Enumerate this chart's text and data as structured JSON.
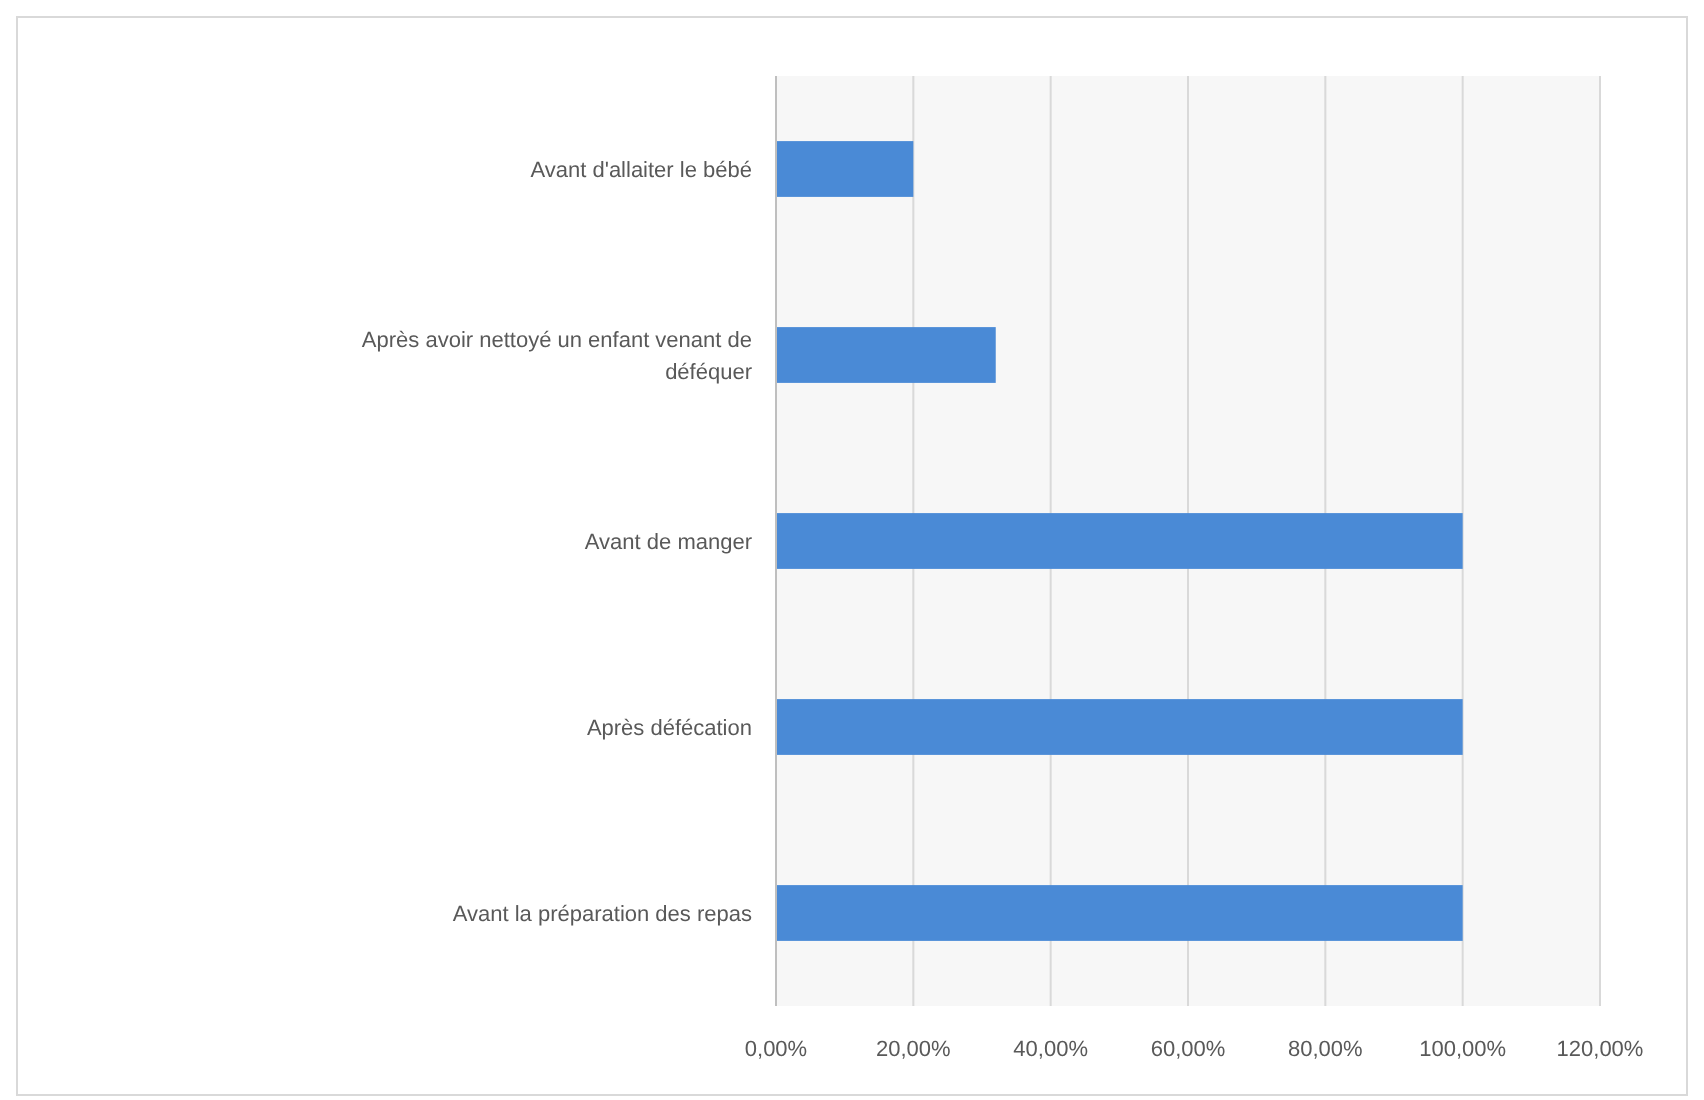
{
  "chart_data": {
    "type": "bar",
    "orientation": "horizontal",
    "categories": [
      "Avant d'allaiter le bébé",
      "Après avoir nettoyé un enfant venant de déféquer",
      "Avant de manger",
      "Après défécation",
      "Avant la préparation des repas"
    ],
    "values": [
      20,
      32,
      100,
      100,
      100
    ],
    "color": "#4a8ad6",
    "xlim": [
      0,
      120
    ],
    "xticks": [
      {
        "value": 0,
        "label": "0,00%"
      },
      {
        "value": 20,
        "label": "20,00%"
      },
      {
        "value": 40,
        "label": "40,00%"
      },
      {
        "value": 60,
        "label": "60,00%"
      },
      {
        "value": 80,
        "label": "80,00%"
      },
      {
        "value": 100,
        "label": "100,00%"
      },
      {
        "value": 120,
        "label": "120,00%"
      }
    ],
    "grid": "x"
  }
}
